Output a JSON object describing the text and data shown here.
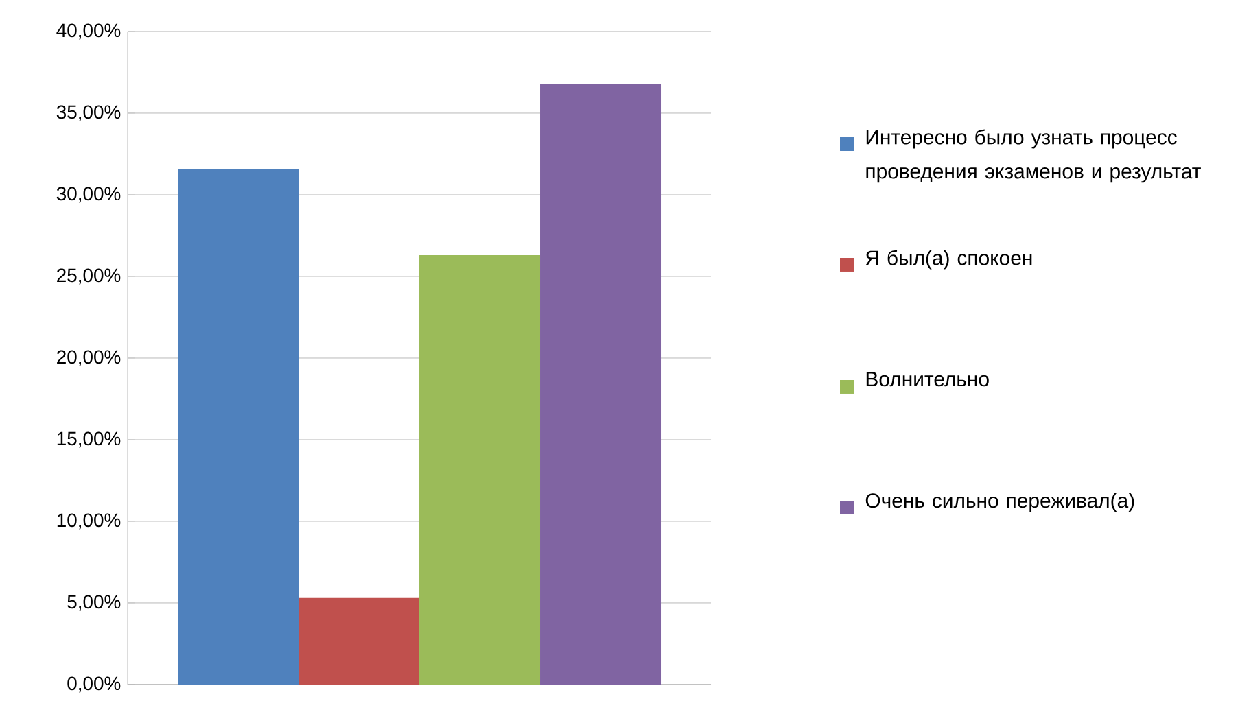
{
  "chart_data": {
    "type": "bar",
    "categories": [
      null
    ],
    "series": [
      {
        "name": "Интересно было узнать процесс проведения экзаменов и результат",
        "color": "#4f81bd",
        "values": [
          31.6
        ]
      },
      {
        "name": "Я был(а) спокоен",
        "color": "#c0504d",
        "values": [
          5.3
        ]
      },
      {
        "name": "Волнительно",
        "color": "#9bbb59",
        "values": [
          26.3
        ]
      },
      {
        "name": "Очень сильно переживал(а)",
        "color": "#8064a2",
        "values": [
          36.8
        ]
      }
    ],
    "ylim": [
      0,
      40
    ],
    "yticks": [
      {
        "value": 0,
        "label": "0,00%"
      },
      {
        "value": 5,
        "label": "5,00%"
      },
      {
        "value": 10,
        "label": "10,00%"
      },
      {
        "value": 15,
        "label": "15,00%"
      },
      {
        "value": 20,
        "label": "20,00%"
      },
      {
        "value": 25,
        "label": "25,00%"
      },
      {
        "value": 30,
        "label": "30,00%"
      },
      {
        "value": 35,
        "label": "35,00%"
      },
      {
        "value": 40,
        "label": "40,00%"
      }
    ],
    "grid": "y",
    "legend": "right"
  }
}
